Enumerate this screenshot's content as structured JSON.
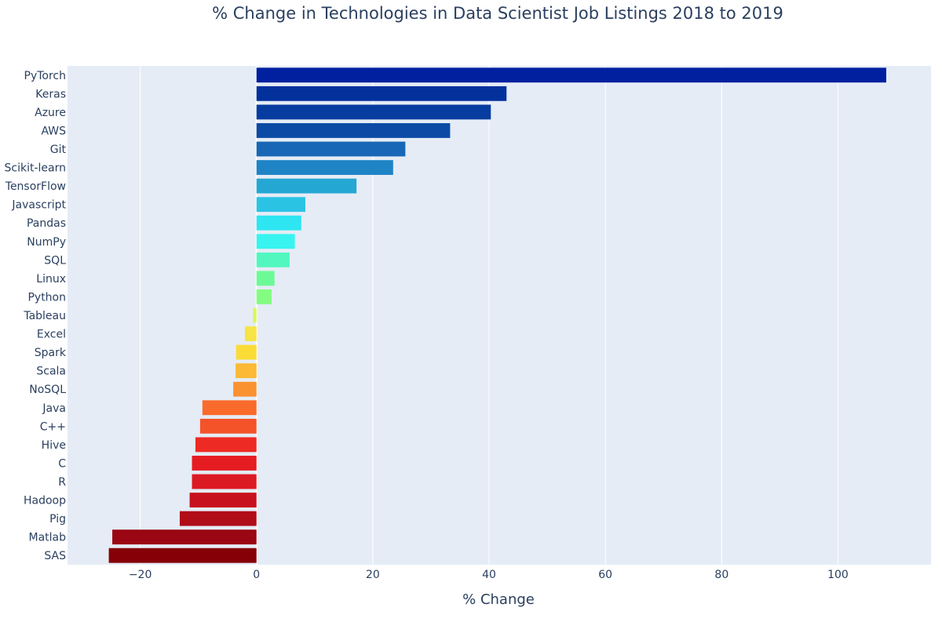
{
  "colors": {
    "plot_background": "#e5ecf6",
    "grid": "#ffffff",
    "text": "#2a3f5f"
  },
  "chart_data": {
    "type": "bar",
    "orientation": "horizontal",
    "title": "% Change in Technologies in Data Scientist Job Listings 2018 to 2019",
    "xlabel": "% Change",
    "ylabel": "",
    "xlim": [
      -32.5,
      116
    ],
    "xticks": [
      -20,
      0,
      20,
      40,
      60,
      80,
      100
    ],
    "xtick_labels": [
      "−20",
      "0",
      "20",
      "40",
      "60",
      "80",
      "100"
    ],
    "grid": true,
    "legend": "none",
    "categories": [
      "PyTorch",
      "Keras",
      "Azure",
      "AWS",
      "Git",
      "Scikit-learn",
      "TensorFlow",
      "Javascript",
      "Pandas",
      "NumPy",
      "SQL",
      "Linux",
      "Python",
      "Tableau",
      "Excel",
      "Spark",
      "Scala",
      "NoSQL",
      "Java",
      "C++",
      "Hive",
      "C",
      "R",
      "Hadoop",
      "Pig",
      "Matlab",
      "SAS"
    ],
    "values": [
      108.3,
      43.0,
      40.3,
      33.3,
      25.6,
      23.5,
      17.2,
      8.4,
      7.7,
      6.6,
      5.7,
      3.1,
      2.6,
      -0.6,
      -2.0,
      -3.5,
      -3.6,
      -4.0,
      -9.3,
      -9.7,
      -10.5,
      -11.1,
      -11.1,
      -11.5,
      -13.2,
      -24.8,
      -25.4
    ],
    "bar_colors": [
      "#00209f",
      "#03319c",
      "#073da0",
      "#0c4ba5",
      "#1867b6",
      "#1e84c6",
      "#25a7d4",
      "#2bc3e4",
      "#2ee5f2",
      "#38f4f0",
      "#52f7c0",
      "#6cfa96",
      "#84fc82",
      "#daf75a",
      "#f7e444",
      "#fbdc37",
      "#fbb935",
      "#fb9232",
      "#f96a2b",
      "#f4532a",
      "#ee2a24",
      "#e51c22",
      "#dc1a23",
      "#c8111e",
      "#b00d18",
      "#9a0612",
      "#860008"
    ]
  }
}
